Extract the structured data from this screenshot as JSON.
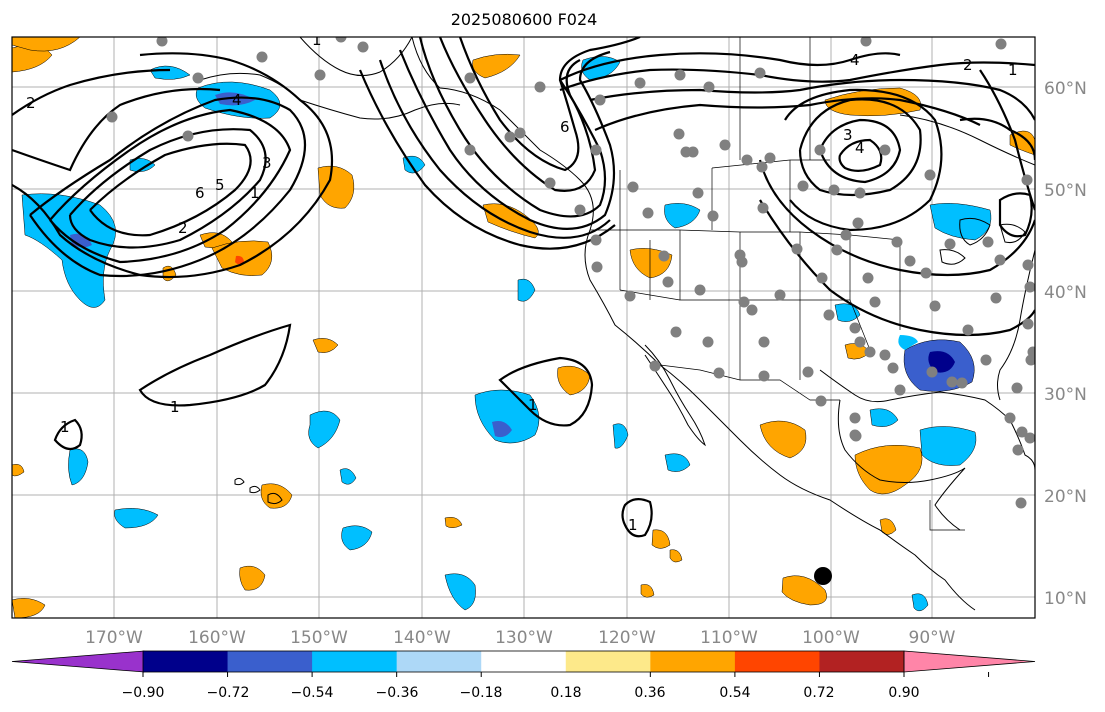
{
  "title": "2025080600 F024",
  "lat_labels": [
    "60°N",
    "50°N",
    "40°N",
    "30°N",
    "20°N",
    "10°N"
  ],
  "lon_labels": [
    "170°W",
    "160°W",
    "150°W",
    "140°W",
    "130°W",
    "120°W",
    "110°W",
    "100°W",
    "90°W"
  ],
  "colorbar": {
    "tick_labels": [
      "−0.90",
      "−0.72",
      "−0.54",
      "−0.36",
      "−0.18",
      "0.18",
      "0.36",
      "0.54",
      "0.72",
      "0.90"
    ],
    "colors": [
      "#9932cc",
      "#00008b",
      "#3a5fcd",
      "#00bfff",
      "#add8f7",
      "#ffffff",
      "#fde98a",
      "#ffa500",
      "#ff4500",
      "#b22222",
      "#ff85a8"
    ]
  },
  "contour_labels": [
    "2",
    "1",
    "6",
    "4",
    "3",
    "5",
    "6",
    "4",
    "2",
    "1",
    "3",
    "4",
    "2",
    "1",
    "1",
    "1",
    "1",
    "1"
  ],
  "colors": {
    "positive": "#ffa500",
    "negative": "#00bfff",
    "strong_negative": "#3a5fcd",
    "strongest_negative": "#00008b",
    "station_dot": "#808080"
  }
}
